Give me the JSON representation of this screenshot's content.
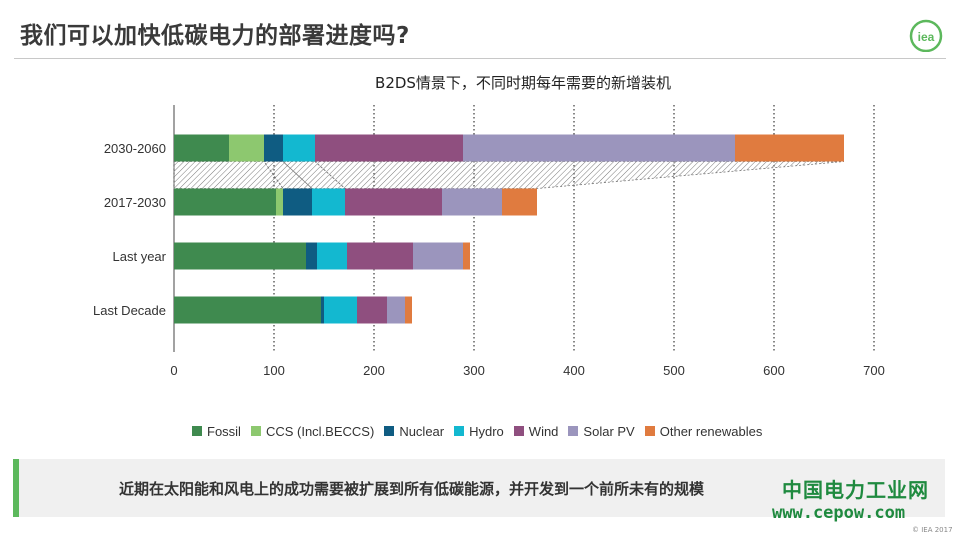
{
  "slide": {
    "title": "我们可以加快低碳电力的部署进度吗?",
    "logo_text": "iea",
    "banner_text": "近期在太阳能和风电上的成功需要被扩展到所有低碳能源，并开发到一个前所未有的规模",
    "watermark_line1": "中国电力工业网",
    "watermark_line2": "www.cepow.com",
    "copyright": "© IEA 2017",
    "accent_color": "#5cb85c"
  },
  "chart_data": {
    "type": "bar",
    "orientation": "horizontal",
    "stacked": true,
    "title": "B2DS情景下，不同时期每年需要的新增装机",
    "xlabel": "",
    "ylabel": "",
    "xlim": [
      0,
      700
    ],
    "xticks": [
      0,
      100,
      200,
      300,
      400,
      500,
      600,
      700
    ],
    "grid": "vertical dotted",
    "legend_position": "bottom",
    "categories": [
      "2030-2060",
      "2017-2030",
      "Last year",
      "Last Decade"
    ],
    "series": [
      {
        "name": "Fossil",
        "color": "#3f8a4f",
        "values": [
          55,
          102,
          132,
          147
        ]
      },
      {
        "name": "CCS (Incl.BECCS)",
        "color": "#8dc86f",
        "values": [
          35,
          7,
          0,
          0
        ]
      },
      {
        "name": "Nuclear",
        "color": "#0f5c82",
        "values": [
          19,
          29,
          11,
          3
        ]
      },
      {
        "name": "Hydro",
        "color": "#13b8d0",
        "values": [
          32,
          33,
          30,
          33
        ]
      },
      {
        "name": "Wind",
        "color": "#8f4f7f",
        "values": [
          148,
          97,
          66,
          30
        ]
      },
      {
        "name": "Solar PV",
        "color": "#9b95bd",
        "values": [
          272,
          60,
          50,
          18
        ]
      },
      {
        "name": "Other renewables",
        "color": "#e07b3f",
        "values": [
          109,
          35,
          7,
          7
        ]
      }
    ]
  }
}
